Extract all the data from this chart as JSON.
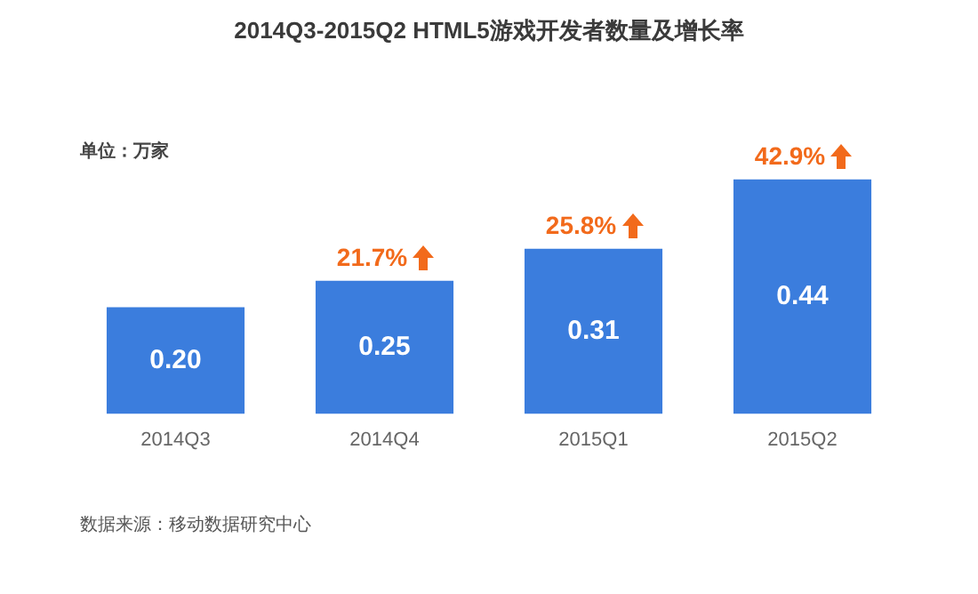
{
  "chart_data": {
    "type": "bar",
    "title": "2014Q3-2015Q2 HTML5游戏开发者数量及增长率",
    "categories": [
      "2014Q3",
      "2014Q4",
      "2015Q1",
      "2015Q2"
    ],
    "values": [
      0.2,
      0.25,
      0.31,
      0.44
    ],
    "value_labels": [
      "0.20",
      "0.25",
      "0.31",
      "0.44"
    ],
    "color": "#3b7ddd",
    "annotations": [
      "单位：万家",
      {
        "text": "21.7%",
        "x": "2014Q4",
        "y": 0.25
      },
      {
        "text": "25.8%",
        "x": "2015Q1",
        "y": 0.31
      },
      {
        "text": "42.9%",
        "x": "2015Q2",
        "y": 0.44
      },
      "数据来源：移动数据研究中心"
    ]
  }
}
